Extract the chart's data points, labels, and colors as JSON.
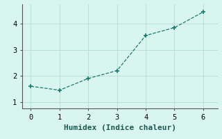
{
  "x": [
    0,
    1,
    2,
    3,
    4,
    5,
    6
  ],
  "y": [
    1.6,
    1.45,
    1.9,
    2.2,
    3.55,
    3.85,
    4.45
  ],
  "xlabel": "Humidex (Indice chaleur)",
  "xlim": [
    -0.3,
    6.5
  ],
  "ylim": [
    0.75,
    4.75
  ],
  "xticks": [
    0,
    1,
    2,
    3,
    4,
    5,
    6
  ],
  "yticks": [
    1,
    2,
    3,
    4
  ],
  "line_color": "#1a7a6e",
  "marker": "+",
  "background_color": "#d9f5f0",
  "grid_color": "#b8e0d8",
  "font_family": "monospace",
  "xlabel_fontsize": 8,
  "tick_fontsize": 7.5
}
